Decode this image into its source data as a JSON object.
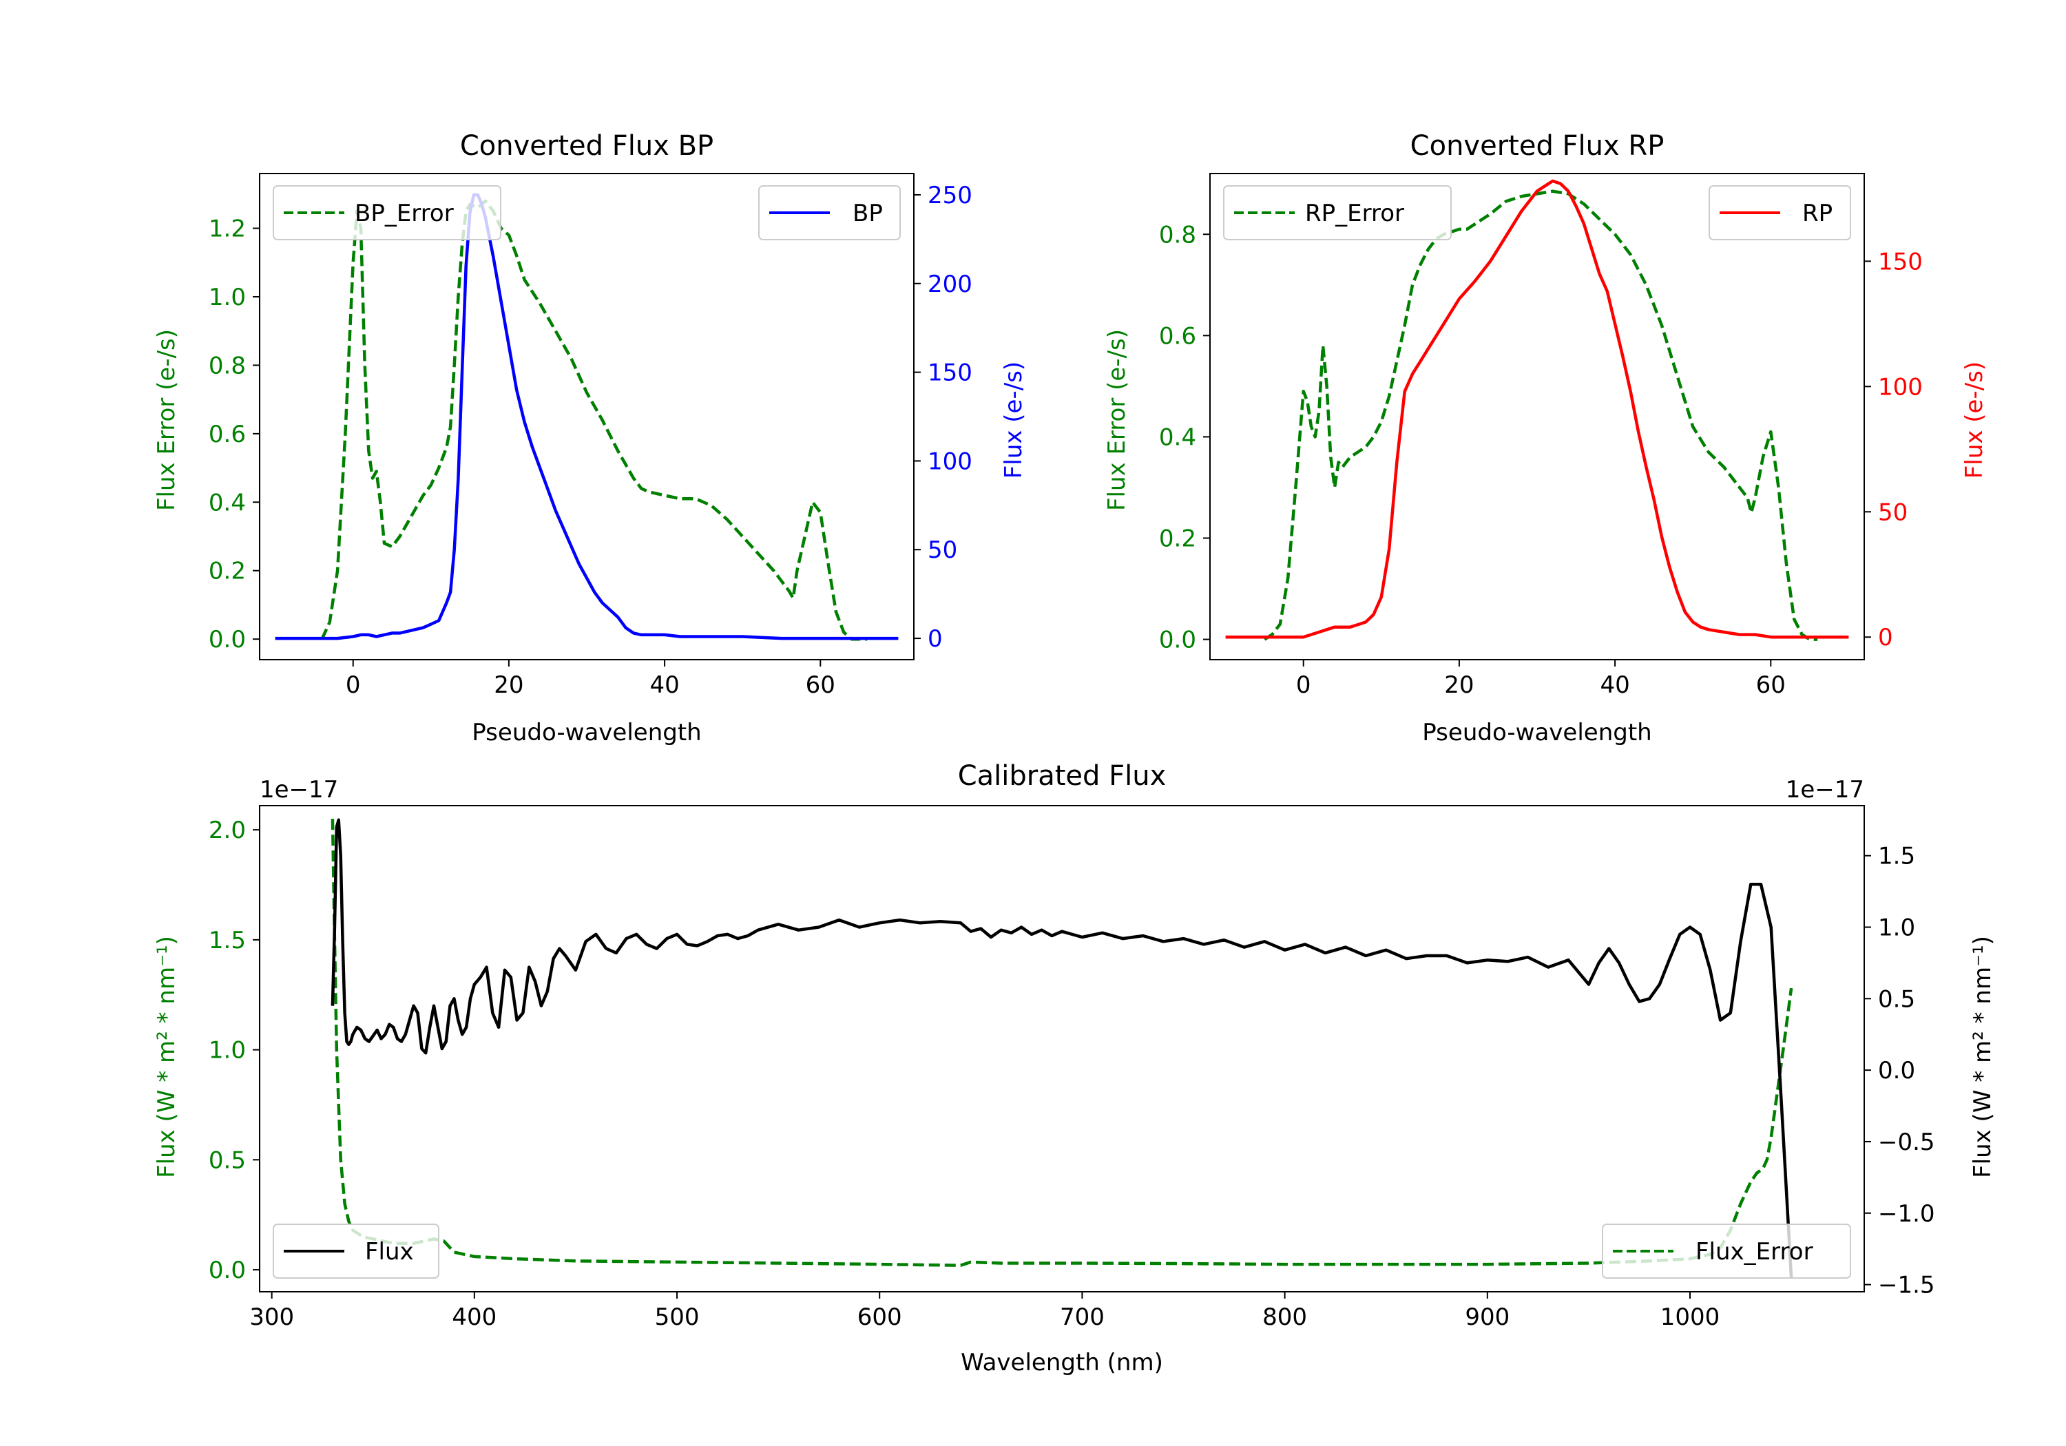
{
  "chart_data": [
    {
      "id": "bp",
      "type": "line",
      "title": "Converted Flux BP",
      "xlabel": "Pseudo-wavelength",
      "ylabel_left": "Flux Error (e-/s)",
      "ylabel_right": "Flux (e-/s)",
      "xlim": [
        -12,
        72
      ],
      "ylim_left": [
        -0.06,
        1.36
      ],
      "ylim_right": [
        -12,
        262
      ],
      "xticks": [
        0,
        20,
        40,
        60
      ],
      "yticks_left": [
        0.0,
        0.2,
        0.4,
        0.6,
        0.8,
        1.0,
        1.2
      ],
      "yticks_right": [
        0,
        50,
        100,
        150,
        200,
        250
      ],
      "left_color": "#008000",
      "right_color": "#0000ff",
      "series": [
        {
          "name": "BP_Error",
          "axis": "left",
          "color": "#008000",
          "style": "dashed",
          "x": [
            -4,
            -3,
            -2,
            -1,
            0,
            0.5,
            1,
            1.5,
            2,
            2.5,
            3,
            3.5,
            4,
            5,
            6,
            7,
            8,
            9,
            10,
            11,
            12,
            12.5,
            13,
            13.5,
            14,
            14.5,
            15,
            16,
            17,
            18,
            19,
            20,
            21,
            22,
            24,
            26,
            28,
            30,
            32,
            34,
            36,
            37,
            38,
            40,
            42,
            44,
            46,
            48,
            50,
            52,
            54,
            56,
            56.5,
            57,
            58,
            59,
            60,
            61,
            62,
            63,
            64,
            65,
            66
          ],
          "values": [
            0.0,
            0.05,
            0.2,
            0.6,
            1.1,
            1.25,
            1.2,
            0.8,
            0.55,
            0.47,
            0.49,
            0.4,
            0.28,
            0.27,
            0.3,
            0.34,
            0.38,
            0.42,
            0.45,
            0.5,
            0.56,
            0.62,
            0.8,
            1.0,
            1.15,
            1.25,
            1.27,
            1.26,
            1.28,
            1.25,
            1.2,
            1.18,
            1.12,
            1.05,
            0.98,
            0.9,
            0.82,
            0.72,
            0.64,
            0.55,
            0.47,
            0.44,
            0.43,
            0.42,
            0.41,
            0.41,
            0.39,
            0.35,
            0.3,
            0.25,
            0.2,
            0.14,
            0.12,
            0.2,
            0.3,
            0.4,
            0.37,
            0.22,
            0.08,
            0.02,
            0.0,
            0.0,
            0.0
          ]
        },
        {
          "name": "BP",
          "axis": "right",
          "color": "#0000ff",
          "style": "solid",
          "x": [
            -10,
            -5,
            -2,
            0,
            1,
            2,
            3,
            4,
            5,
            6,
            7,
            8,
            9,
            10,
            11,
            11.5,
            12,
            12.5,
            13,
            13.5,
            14,
            14.5,
            15,
            15.5,
            16,
            16.5,
            17,
            18,
            19,
            20,
            21,
            22,
            23,
            24,
            25,
            26,
            27,
            28,
            29,
            30,
            31,
            32,
            33,
            34,
            35,
            36,
            37,
            38,
            40,
            42,
            46,
            48,
            50,
            55,
            60,
            65,
            70
          ],
          "values": [
            0,
            0,
            0,
            1,
            2,
            2,
            1,
            2,
            3,
            3,
            4,
            5,
            6,
            8,
            10,
            15,
            20,
            26,
            50,
            90,
            150,
            210,
            240,
            250,
            250,
            245,
            237,
            215,
            190,
            165,
            140,
            122,
            108,
            96,
            84,
            72,
            62,
            52,
            42,
            34,
            26,
            20,
            16,
            12,
            6,
            3,
            2,
            2,
            2,
            1,
            1,
            1,
            1,
            0,
            0,
            0,
            0
          ]
        }
      ],
      "legends": [
        {
          "label": "BP_Error",
          "style": "dashed",
          "color": "#008000",
          "position": "top-left"
        },
        {
          "label": "BP",
          "style": "solid",
          "color": "#0000ff",
          "position": "top-right"
        }
      ]
    },
    {
      "id": "rp",
      "type": "line",
      "title": "Converted Flux RP",
      "xlabel": "Pseudo-wavelength",
      "ylabel_left": "Flux Error (e-/s)",
      "ylabel_right": "Flux (e-/s)",
      "xlim": [
        -12,
        72
      ],
      "ylim_left": [
        -0.04,
        0.92
      ],
      "ylim_right": [
        -9,
        185
      ],
      "xticks": [
        0,
        20,
        40,
        60
      ],
      "yticks_left": [
        0.0,
        0.2,
        0.4,
        0.6,
        0.8
      ],
      "yticks_right": [
        0,
        50,
        100,
        150
      ],
      "left_color": "#008000",
      "right_color": "#ff0000",
      "series": [
        {
          "name": "RP_Error",
          "axis": "left",
          "color": "#008000",
          "style": "dashed",
          "x": [
            -5,
            -4,
            -3,
            -2,
            -1,
            0,
            0.5,
            1,
            1.5,
            2,
            2.5,
            3,
            3.5,
            4,
            4.5,
            5,
            6,
            7,
            8,
            9,
            10,
            11,
            12,
            13,
            14,
            15,
            16,
            17,
            18,
            19,
            20,
            21,
            22,
            24,
            26,
            28,
            30,
            32,
            34,
            36,
            38,
            40,
            42,
            44,
            46,
            48,
            50,
            52,
            54,
            55,
            56,
            57,
            57.5,
            58,
            59,
            60,
            61,
            62,
            63,
            64,
            65,
            66
          ],
          "values": [
            0.0,
            0.01,
            0.03,
            0.12,
            0.3,
            0.49,
            0.47,
            0.42,
            0.4,
            0.45,
            0.58,
            0.5,
            0.36,
            0.3,
            0.35,
            0.34,
            0.36,
            0.37,
            0.38,
            0.4,
            0.43,
            0.48,
            0.55,
            0.62,
            0.7,
            0.74,
            0.77,
            0.79,
            0.8,
            0.805,
            0.81,
            0.81,
            0.82,
            0.84,
            0.865,
            0.875,
            0.88,
            0.885,
            0.88,
            0.86,
            0.83,
            0.8,
            0.76,
            0.7,
            0.62,
            0.52,
            0.42,
            0.37,
            0.34,
            0.32,
            0.3,
            0.28,
            0.25,
            0.28,
            0.36,
            0.41,
            0.3,
            0.15,
            0.04,
            0.01,
            0.0,
            0.0
          ]
        },
        {
          "name": "RP",
          "axis": "right",
          "color": "#ff0000",
          "style": "solid",
          "x": [
            -10,
            -5,
            0,
            1,
            2,
            3,
            4,
            5,
            6,
            7,
            8,
            9,
            10,
            11,
            12,
            13,
            14,
            15,
            16,
            18,
            20,
            22,
            24,
            26,
            28,
            30,
            31,
            32,
            33,
            34,
            35,
            36,
            37,
            38,
            39,
            40,
            41,
            42,
            43,
            44,
            45,
            46,
            47,
            48,
            49,
            50,
            51,
            52,
            54,
            56,
            58,
            60,
            62,
            65,
            70
          ],
          "values": [
            0,
            0,
            0,
            1,
            2,
            3,
            4,
            4,
            4,
            5,
            6,
            9,
            16,
            35,
            70,
            98,
            105,
            110,
            115,
            125,
            135,
            142,
            150,
            160,
            170,
            178,
            180,
            182,
            181,
            178,
            172,
            165,
            155,
            145,
            138,
            125,
            112,
            98,
            82,
            68,
            55,
            40,
            28,
            18,
            10,
            6,
            4,
            3,
            2,
            1,
            1,
            0,
            0,
            0,
            0
          ]
        }
      ],
      "legends": [
        {
          "label": "RP_Error",
          "style": "dashed",
          "color": "#008000",
          "position": "top-left"
        },
        {
          "label": "RP",
          "style": "solid",
          "color": "#ff0000",
          "position": "top-right"
        }
      ]
    },
    {
      "id": "cal",
      "type": "line",
      "title": "Calibrated Flux",
      "xlabel": "Wavelength (nm)",
      "ylabel_left": "Flux (W * m² * nm⁻¹)",
      "ylabel_right": "Flux (W * m² * nm⁻¹)",
      "offset_left": "1e−17",
      "offset_right": "1e−17",
      "xlim": [
        294,
        1086
      ],
      "ylim_left": [
        -0.1,
        2.11
      ],
      "ylim_right": [
        -1.55,
        1.85
      ],
      "xticks": [
        300,
        400,
        500,
        600,
        700,
        800,
        900,
        1000
      ],
      "yticks_left": [
        0.0,
        0.5,
        1.0,
        1.5,
        2.0
      ],
      "yticks_right": [
        -1.5,
        -1.0,
        -0.5,
        0.0,
        0.5,
        1.0,
        1.5
      ],
      "left_color": "#008000",
      "right_color": "#000000",
      "series": [
        {
          "name": "Flux_Error",
          "axis": "left",
          "color": "#008000",
          "style": "dashed",
          "x": [
            330,
            331,
            332,
            334,
            336,
            338,
            340,
            345,
            350,
            355,
            360,
            370,
            380,
            385,
            390,
            400,
            420,
            450,
            500,
            550,
            600,
            640,
            645,
            660,
            700,
            750,
            800,
            850,
            900,
            950,
            980,
            1000,
            1010,
            1015,
            1020,
            1025,
            1030,
            1033,
            1036,
            1038,
            1040,
            1043,
            1046,
            1050
          ],
          "values": [
            2.05,
            1.5,
            1.0,
            0.5,
            0.3,
            0.22,
            0.18,
            0.15,
            0.14,
            0.13,
            0.12,
            0.12,
            0.14,
            0.13,
            0.08,
            0.06,
            0.05,
            0.04,
            0.035,
            0.03,
            0.025,
            0.02,
            0.035,
            0.03,
            0.03,
            0.028,
            0.025,
            0.025,
            0.025,
            0.03,
            0.04,
            0.05,
            0.07,
            0.1,
            0.18,
            0.3,
            0.4,
            0.44,
            0.46,
            0.5,
            0.6,
            0.8,
            1.0,
            1.28
          ]
        },
        {
          "name": "Flux",
          "axis": "right",
          "color": "#000000",
          "style": "solid",
          "x": [
            330,
            331,
            332,
            333,
            334,
            335,
            336,
            337,
            338,
            339,
            340,
            342,
            344,
            346,
            348,
            350,
            352,
            354,
            356,
            358,
            360,
            362,
            364,
            366,
            368,
            370,
            372,
            374,
            376,
            378,
            380,
            382,
            384,
            386,
            388,
            390,
            392,
            394,
            396,
            398,
            400,
            403,
            406,
            409,
            412,
            415,
            418,
            421,
            424,
            427,
            430,
            433,
            436,
            439,
            442,
            445,
            450,
            455,
            460,
            465,
            470,
            475,
            480,
            485,
            490,
            495,
            500,
            505,
            510,
            515,
            520,
            525,
            530,
            535,
            540,
            550,
            560,
            570,
            580,
            590,
            600,
            610,
            620,
            630,
            640,
            645,
            650,
            655,
            660,
            665,
            670,
            675,
            680,
            685,
            690,
            700,
            710,
            720,
            730,
            740,
            750,
            760,
            770,
            780,
            790,
            800,
            810,
            820,
            830,
            840,
            850,
            860,
            870,
            880,
            890,
            900,
            910,
            920,
            930,
            940,
            950,
            955,
            960,
            965,
            970,
            975,
            980,
            985,
            990,
            995,
            1000,
            1005,
            1010,
            1015,
            1020,
            1025,
            1030,
            1035,
            1040,
            1045,
            1050
          ],
          "values": [
            0.45,
            1.0,
            1.7,
            1.75,
            1.5,
            0.9,
            0.4,
            0.2,
            0.18,
            0.2,
            0.25,
            0.3,
            0.28,
            0.22,
            0.2,
            0.24,
            0.28,
            0.22,
            0.25,
            0.32,
            0.3,
            0.22,
            0.2,
            0.25,
            0.35,
            0.45,
            0.4,
            0.15,
            0.12,
            0.3,
            0.45,
            0.3,
            0.15,
            0.2,
            0.45,
            0.5,
            0.35,
            0.25,
            0.3,
            0.5,
            0.6,
            0.65,
            0.72,
            0.4,
            0.3,
            0.7,
            0.65,
            0.35,
            0.4,
            0.72,
            0.62,
            0.45,
            0.55,
            0.78,
            0.85,
            0.8,
            0.7,
            0.9,
            0.95,
            0.85,
            0.82,
            0.92,
            0.95,
            0.88,
            0.85,
            0.92,
            0.95,
            0.88,
            0.87,
            0.9,
            0.94,
            0.95,
            0.92,
            0.94,
            0.98,
            1.02,
            0.98,
            1.0,
            1.05,
            1.0,
            1.03,
            1.05,
            1.03,
            1.04,
            1.03,
            0.97,
            0.99,
            0.93,
            0.98,
            0.96,
            1.0,
            0.95,
            0.98,
            0.94,
            0.97,
            0.93,
            0.96,
            0.92,
            0.94,
            0.9,
            0.92,
            0.88,
            0.91,
            0.86,
            0.9,
            0.84,
            0.88,
            0.82,
            0.86,
            0.8,
            0.84,
            0.78,
            0.8,
            0.8,
            0.75,
            0.77,
            0.76,
            0.79,
            0.72,
            0.77,
            0.6,
            0.75,
            0.85,
            0.75,
            0.6,
            0.48,
            0.5,
            0.6,
            0.78,
            0.95,
            1.0,
            0.95,
            0.7,
            0.35,
            0.4,
            0.9,
            1.3,
            1.3,
            1.0,
            -0.2,
            -1.45
          ]
        }
      ],
      "legends": [
        {
          "label": "Flux",
          "style": "solid",
          "color": "#000000",
          "position": "bottom-left"
        },
        {
          "label": "Flux_Error",
          "style": "dashed",
          "color": "#008000",
          "position": "bottom-right"
        }
      ]
    }
  ]
}
